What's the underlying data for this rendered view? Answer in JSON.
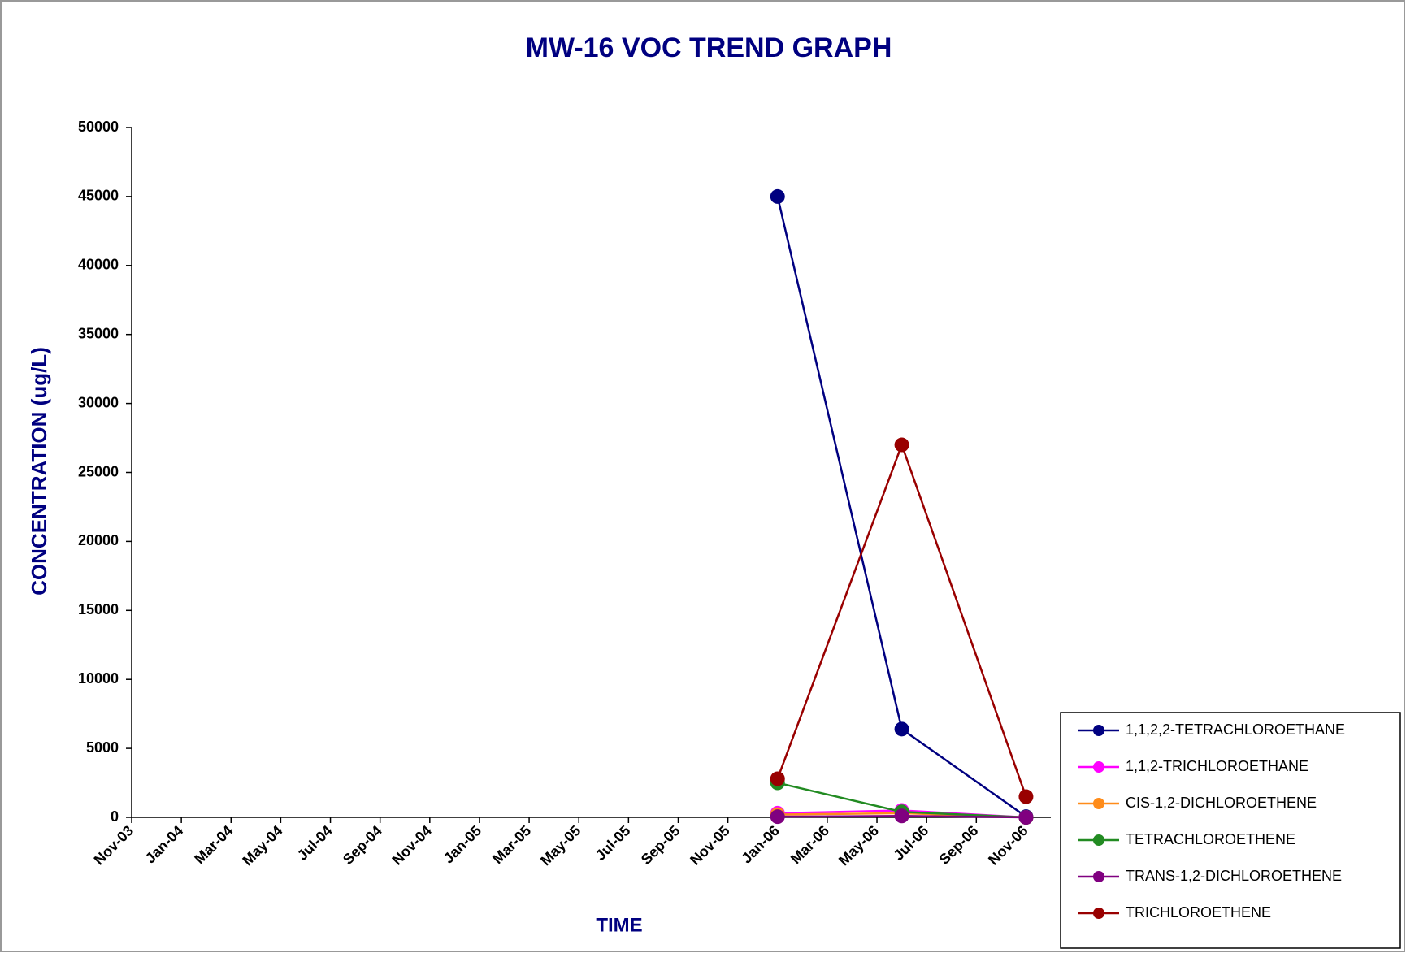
{
  "chart_data": {
    "type": "line",
    "title": "MW-16 VOC TREND GRAPH",
    "x_label": "TIME",
    "y_label": "CONCENTRATION (ug/L)",
    "x": [
      "2006-01",
      "2006-06",
      "2006-11"
    ],
    "xlim": [
      "2003-11",
      "2006-12"
    ],
    "xticks": [
      {
        "value": "2003-11",
        "label": "Nov-03"
      },
      {
        "value": "2004-01",
        "label": "Jan-04"
      },
      {
        "value": "2004-03",
        "label": "Mar-04"
      },
      {
        "value": "2004-05",
        "label": "May-04"
      },
      {
        "value": "2004-07",
        "label": "Jul-04"
      },
      {
        "value": "2004-09",
        "label": "Sep-04"
      },
      {
        "value": "2004-11",
        "label": "Nov-04"
      },
      {
        "value": "2005-01",
        "label": "Jan-05"
      },
      {
        "value": "2005-03",
        "label": "Mar-05"
      },
      {
        "value": "2005-05",
        "label": "May-05"
      },
      {
        "value": "2005-07",
        "label": "Jul-05"
      },
      {
        "value": "2005-09",
        "label": "Sep-05"
      },
      {
        "value": "2005-11",
        "label": "Nov-05"
      },
      {
        "value": "2006-01",
        "label": "Jan-06"
      },
      {
        "value": "2006-03",
        "label": "Mar-06"
      },
      {
        "value": "2006-05",
        "label": "May-06"
      },
      {
        "value": "2006-07",
        "label": "Jul-06"
      },
      {
        "value": "2006-09",
        "label": "Sep-06"
      },
      {
        "value": "2006-11",
        "label": "Nov-06"
      }
    ],
    "ylim": [
      0,
      50000
    ],
    "yticks": [
      0,
      5000,
      10000,
      15000,
      20000,
      25000,
      30000,
      35000,
      40000,
      45000,
      50000
    ],
    "legend": "lower-right",
    "series": [
      {
        "name": "1,1,2,2-TETRACHLOROETHANE",
        "color": "#000080",
        "values": [
          45000,
          6400,
          50
        ]
      },
      {
        "name": "1,1,2-TRICHLOROETHANE",
        "color": "#ff00ff",
        "values": [
          300,
          500,
          0
        ]
      },
      {
        "name": "CIS-1,2-DICHLOROETHENE",
        "color": "#ff8c1a",
        "values": [
          200,
          300,
          0
        ]
      },
      {
        "name": "TETRACHLOROETHENE",
        "color": "#228b22",
        "values": [
          2500,
          400,
          0
        ]
      },
      {
        "name": "TRANS-1,2-DICHLOROETHENE",
        "color": "#800080",
        "values": [
          50,
          100,
          0
        ]
      },
      {
        "name": "TRICHLOROETHENE",
        "color": "#990000",
        "values": [
          2800,
          27000,
          1500
        ]
      }
    ]
  }
}
